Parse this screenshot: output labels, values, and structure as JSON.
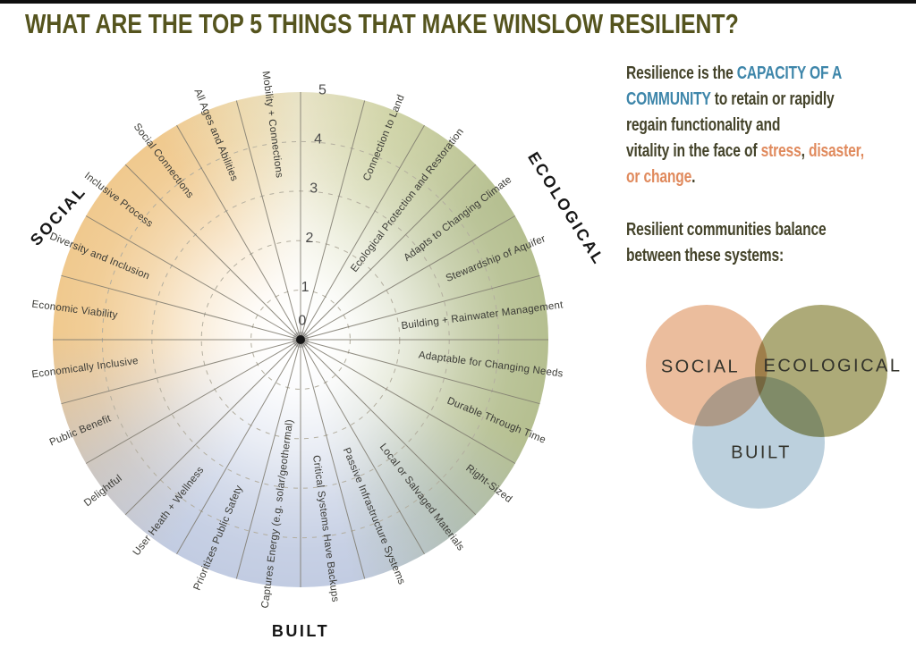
{
  "title": "WHAT ARE THE TOP 5 THINGS THAT MAKE WINSLOW RESILIENT?",
  "wheel": {
    "categories": [
      {
        "label": "SOCIAL"
      },
      {
        "label": "ECOLOGICAL"
      },
      {
        "label": "BUILT"
      }
    ],
    "scale_numbers": [
      "0",
      "1",
      "2",
      "3",
      "4",
      "5"
    ],
    "spokes": [
      "Connection to Land",
      "Ecological Protection and Restoration",
      "Adapts to Changing Climate",
      "Stewardship of Aquifer",
      "Building + Rainwater Management",
      "Adaptable for Changing Needs",
      "Durable Through Time",
      "Right-Sized",
      "Local or Salvaged Materials",
      "Passive Infrastructure Systems",
      "Critical Systems Have Backups",
      "Captures Energy (e.g. solar/geothermal)",
      "Prioritizes Public Safety",
      "User Heath + Wellness",
      "Delightful",
      "Public Benefit",
      "Economically Inclusive",
      "Economic Viability",
      "Diversity and Inclusion",
      "Inclusive Process",
      "Social Connections",
      "All Ages and Abilities",
      "Mobility + Connections"
    ],
    "disc_colors": {
      "social": "#f0c98e",
      "ecological": "#b5bf90",
      "built": "#c2cce2",
      "center": "#ffffff"
    }
  },
  "sidebar": {
    "intro_lines": [
      [
        {
          "t": "Resilience is the ",
          "c": "olive"
        },
        {
          "t": "CAPACITY OF A",
          "c": "blue"
        }
      ],
      [
        {
          "t": "COMMUNITY",
          "c": "blue"
        },
        {
          "t": " to retain or rapidly",
          "c": "olive"
        }
      ],
      [
        {
          "t": "regain functionality and",
          "c": "olive"
        }
      ],
      [
        {
          "t": "vitality in the face of ",
          "c": "olive"
        },
        {
          "t": "stress",
          "c": "orange"
        },
        {
          "t": ", ",
          "c": "olive"
        },
        {
          "t": "disaster,",
          "c": "orange"
        }
      ],
      [
        {
          "t": "or change",
          "c": "orange"
        },
        {
          "t": ".",
          "c": "olive"
        }
      ]
    ],
    "balance_lines": [
      [
        {
          "t": "Resilient communities balance",
          "c": "olive"
        }
      ],
      [
        {
          "t": "between these systems:",
          "c": "olive"
        }
      ]
    ],
    "venn": {
      "circles": [
        {
          "label": "SOCIAL",
          "color": "#eab896"
        },
        {
          "label": "ECOLOGICAL",
          "color": "#a7a46e"
        },
        {
          "label": "BUILT",
          "color": "#b7cddb"
        }
      ]
    }
  },
  "colors": {
    "title": "#55541e",
    "body": "#44432a",
    "accent_blue": "#3e86aa",
    "accent_orange": "#e08a5d"
  },
  "chart_data": {
    "type": "radial-framework",
    "title": "WHAT ARE THE TOP 5 THINGS THAT MAKE WINSLOW RESILIENT?",
    "scale": {
      "min": 0,
      "max": 5,
      "ring_values": [
        1,
        2,
        3,
        4,
        5
      ]
    },
    "sections": [
      "SOCIAL",
      "ECOLOGICAL",
      "BUILT"
    ],
    "axes_clockwise_from_top": [
      "Connection to Land",
      "Ecological Protection and Restoration",
      "Adapts to Changing Climate",
      "Stewardship of Aquifer",
      "Building + Rainwater Management",
      "Adaptable for Changing Needs",
      "Durable Through Time",
      "Right-Sized",
      "Local or Salvaged Materials",
      "Passive Infrastructure Systems",
      "Critical Systems Have Backups",
      "Captures Energy (e.g. solar/geothermal)",
      "Prioritizes Public Safety",
      "User Heath + Wellness",
      "Delightful",
      "Public Benefit",
      "Economically Inclusive",
      "Economic Viability",
      "Diversity and Inclusion",
      "Inclusive Process",
      "Social Connections",
      "All Ages and Abilities",
      "Mobility + Connections"
    ],
    "series": [],
    "legend": "none",
    "grid": "dashed concentric rings"
  }
}
